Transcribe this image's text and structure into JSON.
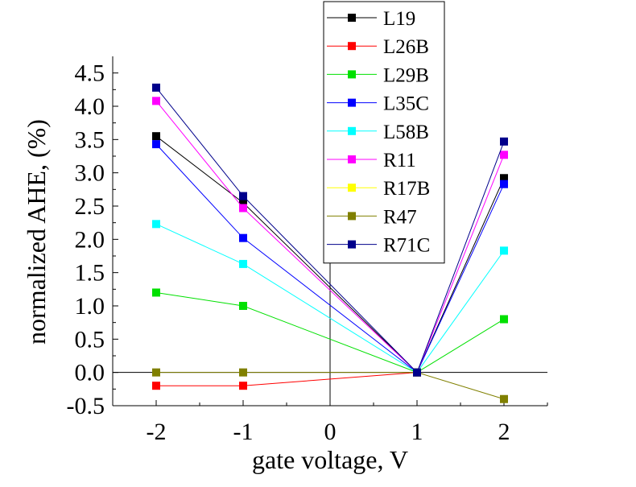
{
  "chart_data": {
    "type": "line",
    "xlabel": "gate voltage, V",
    "ylabel": "normalized AHE, (%)",
    "x": [
      -2,
      -1,
      1,
      2
    ],
    "xlim": [
      -2.5,
      2.5
    ],
    "ylim": [
      -0.5,
      4.75
    ],
    "xticks": [
      -2,
      -1,
      0,
      1,
      2
    ],
    "xtick_labels": [
      "-2",
      "-1",
      "0",
      "1",
      "2"
    ],
    "yticks": [
      -0.5,
      0.0,
      0.5,
      1.0,
      1.5,
      2.0,
      2.5,
      3.0,
      3.5,
      4.0,
      4.5
    ],
    "ytick_labels": [
      "-0.5",
      "0.0",
      "0.5",
      "1.0",
      "1.5",
      "2.0",
      "2.5",
      "3.0",
      "3.5",
      "4.0",
      "4.5"
    ],
    "zero_lines": true,
    "grid": false,
    "legend_position": "top-center",
    "series": [
      {
        "name": "L19",
        "color": "#000000",
        "values": [
          3.55,
          2.55,
          0.0,
          2.92
        ]
      },
      {
        "name": "L26B",
        "color": "#ff0000",
        "values": [
          -0.2,
          -0.2,
          0.0,
          null
        ]
      },
      {
        "name": "L29B",
        "color": "#00e000",
        "values": [
          1.2,
          1.0,
          0.0,
          0.8
        ]
      },
      {
        "name": "L35C",
        "color": "#0000ff",
        "values": [
          3.43,
          2.02,
          0.0,
          2.83
        ]
      },
      {
        "name": "L58B",
        "color": "#00ffff",
        "values": [
          2.23,
          1.63,
          0.0,
          1.83
        ]
      },
      {
        "name": "R11",
        "color": "#ff00ff",
        "values": [
          4.08,
          2.47,
          0.0,
          3.27
        ]
      },
      {
        "name": "R17B",
        "color": "#ffff00",
        "values": [
          null,
          null,
          0.0,
          null
        ]
      },
      {
        "name": "R47",
        "color": "#808000",
        "values": [
          0.0,
          0.0,
          0.0,
          -0.4
        ]
      },
      {
        "name": "R71C",
        "color": "#00008b",
        "values": [
          4.28,
          2.65,
          0.0,
          3.47
        ]
      }
    ]
  }
}
